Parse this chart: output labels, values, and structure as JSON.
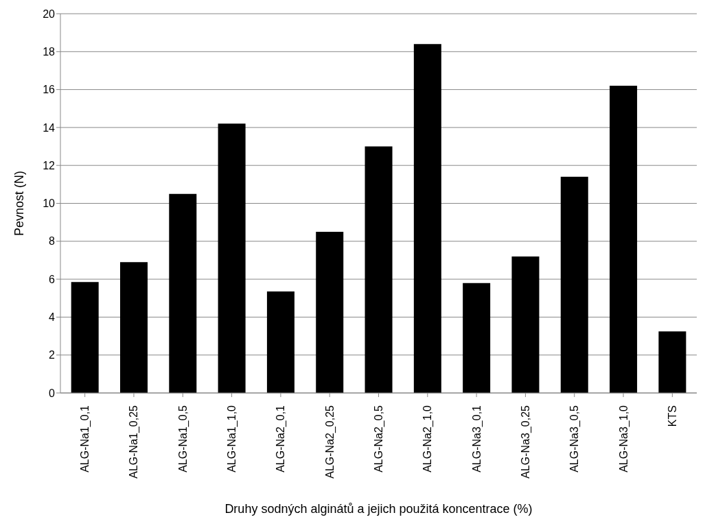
{
  "chart_data": {
    "type": "bar",
    "xlabel": "Druhy  sodných alginátů a jejich použitá koncentrace (%)",
    "ylabel": "Pevnost (N)",
    "categories": [
      "ALG-Na1_0,1",
      "ALG-Na1_0,25",
      "ALG-Na1_0,5",
      "ALG-Na1_1,0",
      "ALG-Na2_0,1",
      "ALG-Na2_0,25",
      "ALG-Na2_0,5",
      "ALG-Na2_1,0",
      "ALG-Na3_0,1",
      "ALG-Na3_0,25",
      "ALG-Na3_0,5",
      "ALG-Na3_1,0",
      "KTS"
    ],
    "values": [
      5.85,
      6.9,
      10.5,
      14.2,
      5.35,
      8.5,
      13.0,
      18.4,
      5.8,
      7.2,
      11.4,
      16.2,
      3.25
    ],
    "color": "#000000",
    "ylim": [
      0,
      20
    ],
    "yticks": [
      0,
      2,
      4,
      6,
      8,
      10,
      12,
      14,
      16,
      18,
      20
    ],
    "grid": "y"
  }
}
